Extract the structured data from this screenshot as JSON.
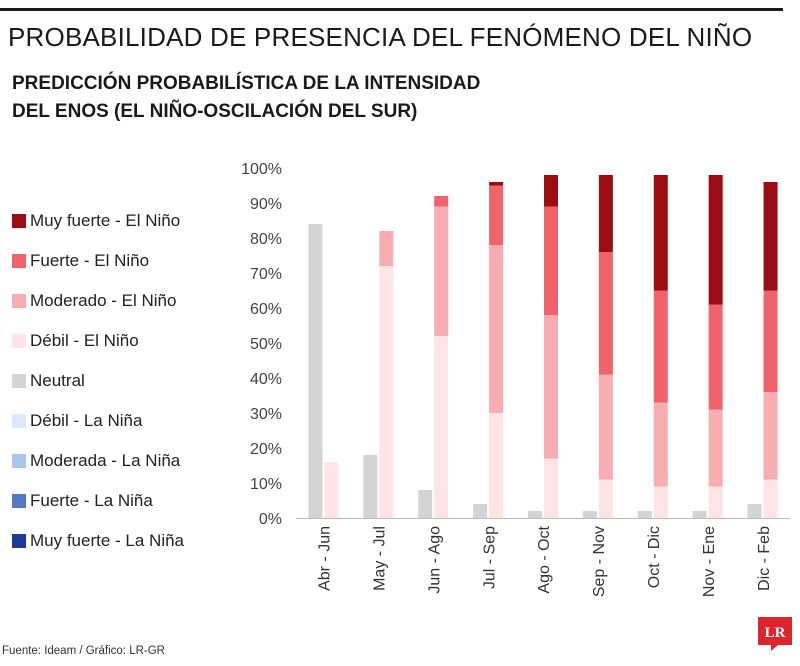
{
  "page": {
    "title": "PROBABILIDAD DE PRESENCIA DEL FENÓMENO DEL NIÑO",
    "subtitle_line1": "PREDICCIÓN PROBABILÍSTICA DE LA INTENSIDAD",
    "subtitle_line2": "DEL ENOS (EL NIÑO-OSCILACIÓN DEL SUR)",
    "source": "Fuente: Ideam / Gráfico: LR-GR",
    "logo_text": "LR"
  },
  "legend": [
    {
      "label": "Muy fuerte - El Niño",
      "color": "#9b0d12"
    },
    {
      "label": "Fuerte - El Niño",
      "color": "#f0636a"
    },
    {
      "label": "Moderado - El Niño",
      "color": "#f7adb1"
    },
    {
      "label": "Débil - El Niño",
      "color": "#fde4e6"
    },
    {
      "label": "Neutral",
      "color": "#d4d4d4"
    },
    {
      "label": "Débil - La Niña",
      "color": "#dde9fa"
    },
    {
      "label": "Moderada - La Niña",
      "color": "#a8c6ee"
    },
    {
      "label": "Fuerte - La Niña",
      "color": "#5679c1"
    },
    {
      "label": "Muy fuerte - La Niña",
      "color": "#1b3b96"
    }
  ],
  "chart_data": {
    "type": "bar",
    "categories": [
      "Abr - Jun",
      "May - Jul",
      "Jun - Ago",
      "Jul - Sep",
      "Ago - Oct",
      "Sep - Nov",
      "Oct - Dic",
      "Nov - Ene",
      "Dic - Feb"
    ],
    "ylim": [
      0,
      100
    ],
    "yticks": [
      "0%",
      "10%",
      "20%",
      "30%",
      "40%",
      "50%",
      "60%",
      "70%",
      "80%",
      "90%",
      "100%"
    ],
    "grid": false,
    "legend_position": "left",
    "neutral_series": {
      "name": "Neutral",
      "color": "#d4d4d4",
      "values": [
        84,
        18,
        8,
        4,
        2,
        2,
        2,
        2,
        4
      ]
    },
    "nino_stack": [
      {
        "name": "Débil - El Niño",
        "color": "#fde4e6",
        "values": [
          16,
          72,
          52,
          30,
          17,
          11,
          9,
          9,
          11
        ]
      },
      {
        "name": "Moderado - El Niño",
        "color": "#f7adb1",
        "values": [
          0,
          10,
          37,
          48,
          41,
          30,
          24,
          22,
          25
        ]
      },
      {
        "name": "Fuerte - El Niño",
        "color": "#f0636a",
        "values": [
          0,
          0,
          3,
          17,
          31,
          35,
          32,
          30,
          29
        ]
      },
      {
        "name": "Muy fuerte - El Niño",
        "color": "#9b0d12",
        "values": [
          0,
          0,
          0,
          1,
          9,
          22,
          33,
          37,
          31
        ]
      }
    ]
  }
}
